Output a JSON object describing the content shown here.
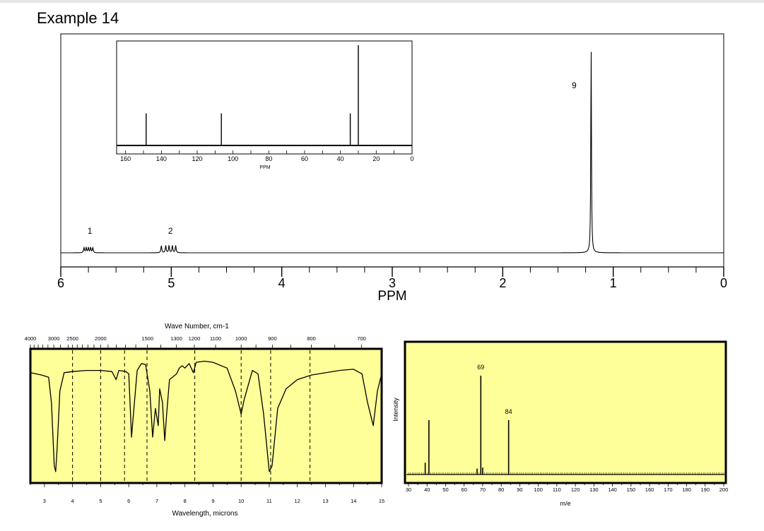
{
  "page": {
    "title": "Example 14"
  },
  "chart_data": [
    {
      "type": "line",
      "name": "1H NMR spectrum",
      "xlabel": "PPM",
      "xlim": [
        6,
        0
      ],
      "x_ticks": [
        "6",
        "5",
        "4",
        "3",
        "2",
        "1",
        "0"
      ],
      "peaks": [
        {
          "label": "1",
          "ppm": 5.75,
          "height": 0.025,
          "multiplet": [
            5.79,
            5.77,
            5.75,
            5.73,
            5.71
          ]
        },
        {
          "label": "2",
          "ppm": 5.02,
          "height": 0.035,
          "multiplet": [
            5.09,
            5.05,
            5.02,
            4.99,
            4.96
          ]
        },
        {
          "label": "9",
          "ppm": 1.2,
          "height": 1.0
        }
      ]
    },
    {
      "type": "bar",
      "name": "13C NMR spectrum",
      "xlabel": "PPM",
      "xlim": [
        165,
        0
      ],
      "x_ticks": [
        "160",
        "140",
        "120",
        "100",
        "80",
        "60",
        "40",
        "20",
        "0"
      ],
      "peaks": [
        {
          "ppm": 148.5,
          "height": 0.32
        },
        {
          "ppm": 106.5,
          "height": 0.32
        },
        {
          "ppm": 34.5,
          "height": 0.32
        },
        {
          "ppm": 30.0,
          "height": 1.0
        }
      ]
    },
    {
      "type": "line",
      "name": "IR spectrum",
      "top_axis_label": "Wave Number, cm-1",
      "xlabel": "Wavelength, microns",
      "xlim": [
        2.5,
        15
      ],
      "top_ticks": [
        "4000",
        "3000",
        "2500",
        "2000",
        "1500",
        "1300",
        "1200",
        "1100",
        "1000",
        "900",
        "800",
        "700"
      ],
      "bottom_ticks": [
        "3",
        "4",
        "5",
        "6",
        "7",
        "8",
        "9",
        "10",
        "11",
        "12",
        "13",
        "14",
        "15"
      ],
      "dashed_lines_microns": [
        4.0,
        5.0,
        5.85,
        6.65,
        8.35,
        10.0,
        11.05,
        12.45
      ],
      "transmittance": [
        [
          2.5,
          0.86
        ],
        [
          2.9,
          0.84
        ],
        [
          3.15,
          0.82
        ],
        [
          3.25,
          0.6
        ],
        [
          3.35,
          0.05
        ],
        [
          3.4,
          0.0
        ],
        [
          3.45,
          0.2
        ],
        [
          3.55,
          0.7
        ],
        [
          3.7,
          0.86
        ],
        [
          4.0,
          0.87
        ],
        [
          4.5,
          0.88
        ],
        [
          5.0,
          0.88
        ],
        [
          5.4,
          0.87
        ],
        [
          5.55,
          0.8
        ],
        [
          5.65,
          0.88
        ],
        [
          5.9,
          0.87
        ],
        [
          6.0,
          0.85
        ],
        [
          6.1,
          0.3
        ],
        [
          6.15,
          0.45
        ],
        [
          6.3,
          0.88
        ],
        [
          6.45,
          0.94
        ],
        [
          6.6,
          0.93
        ],
        [
          6.75,
          0.7
        ],
        [
          6.85,
          0.3
        ],
        [
          6.95,
          0.55
        ],
        [
          7.05,
          0.4
        ],
        [
          7.1,
          0.72
        ],
        [
          7.2,
          0.6
        ],
        [
          7.28,
          0.27
        ],
        [
          7.35,
          0.5
        ],
        [
          7.45,
          0.8
        ],
        [
          7.7,
          0.85
        ],
        [
          7.8,
          0.9
        ],
        [
          7.9,
          0.92
        ],
        [
          8.0,
          0.9
        ],
        [
          8.15,
          0.94
        ],
        [
          8.3,
          0.86
        ],
        [
          8.4,
          0.95
        ],
        [
          8.7,
          0.96
        ],
        [
          9.0,
          0.95
        ],
        [
          9.5,
          0.9
        ],
        [
          9.8,
          0.7
        ],
        [
          10.0,
          0.5
        ],
        [
          10.1,
          0.62
        ],
        [
          10.4,
          0.88
        ],
        [
          10.6,
          0.85
        ],
        [
          10.8,
          0.5
        ],
        [
          11.0,
          0.0
        ],
        [
          11.1,
          0.05
        ],
        [
          11.3,
          0.55
        ],
        [
          11.6,
          0.72
        ],
        [
          12.0,
          0.8
        ],
        [
          12.5,
          0.84
        ],
        [
          13.5,
          0.88
        ],
        [
          14.0,
          0.89
        ],
        [
          14.3,
          0.85
        ],
        [
          14.5,
          0.6
        ],
        [
          14.7,
          0.4
        ],
        [
          14.85,
          0.7
        ],
        [
          15.0,
          0.85
        ]
      ]
    },
    {
      "type": "bar",
      "name": "Mass spectrum",
      "xlabel": "m/e",
      "ylabel": "Intensity",
      "xlim": [
        30,
        200
      ],
      "x_ticks": [
        "30",
        "40",
        "50",
        "60",
        "70",
        "80",
        "90",
        "100",
        "110",
        "120",
        "130",
        "140",
        "150",
        "160",
        "170",
        "180",
        "190",
        "200"
      ],
      "peaks": [
        {
          "mz": 39,
          "intensity": 0.12
        },
        {
          "mz": 41,
          "intensity": 0.55
        },
        {
          "mz": 67,
          "intensity": 0.06
        },
        {
          "mz": 69,
          "intensity": 1.0,
          "label": "69"
        },
        {
          "mz": 70,
          "intensity": 0.07
        },
        {
          "mz": 84,
          "intensity": 0.55,
          "label": "84"
        }
      ],
      "background_color": "#ffff99"
    }
  ]
}
